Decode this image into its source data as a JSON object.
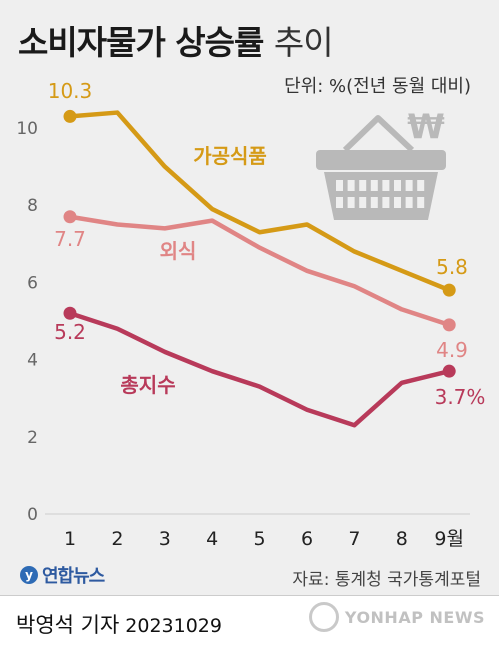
{
  "title": {
    "bold": "소비자물가 상승률",
    "light": "추이"
  },
  "unit_label": "단위: %(전년 동월 대비)",
  "source": "자료: 통계청 국가통계포털",
  "brand": {
    "mark": "y",
    "name": "연합뉴스"
  },
  "reporter": {
    "name": "박영석 기자",
    "date": "20231029"
  },
  "watermark": "YONHAP NEWS",
  "colors": {
    "processed_food": "#d59a16",
    "dining_out": "#e08585",
    "overall": "#b83a5a",
    "basket": "#b9b9b9"
  },
  "chart_data": {
    "type": "line",
    "x": [
      1,
      2,
      3,
      4,
      5,
      6,
      7,
      8,
      9
    ],
    "x_tick_labels": [
      "1",
      "2",
      "3",
      "4",
      "5",
      "6",
      "7",
      "8",
      "9월"
    ],
    "ylim": [
      0,
      10
    ],
    "y_ticks": [
      0,
      2,
      4,
      6,
      8,
      10
    ],
    "grid": false,
    "series": [
      {
        "name": "가공식품",
        "values": [
          10.3,
          10.4,
          9.0,
          7.9,
          7.3,
          7.5,
          6.8,
          6.3,
          5.8
        ],
        "start_label": "10.3",
        "end_label": "5.8"
      },
      {
        "name": "외식",
        "values": [
          7.7,
          7.5,
          7.4,
          7.6,
          6.9,
          6.3,
          5.9,
          5.3,
          4.9
        ],
        "start_label": "7.7",
        "end_label": "4.9"
      },
      {
        "name": "총지수",
        "values": [
          5.2,
          4.8,
          4.2,
          3.7,
          3.3,
          2.7,
          2.3,
          3.4,
          3.7
        ],
        "start_label": "5.2",
        "end_label": "3.7%"
      }
    ]
  }
}
